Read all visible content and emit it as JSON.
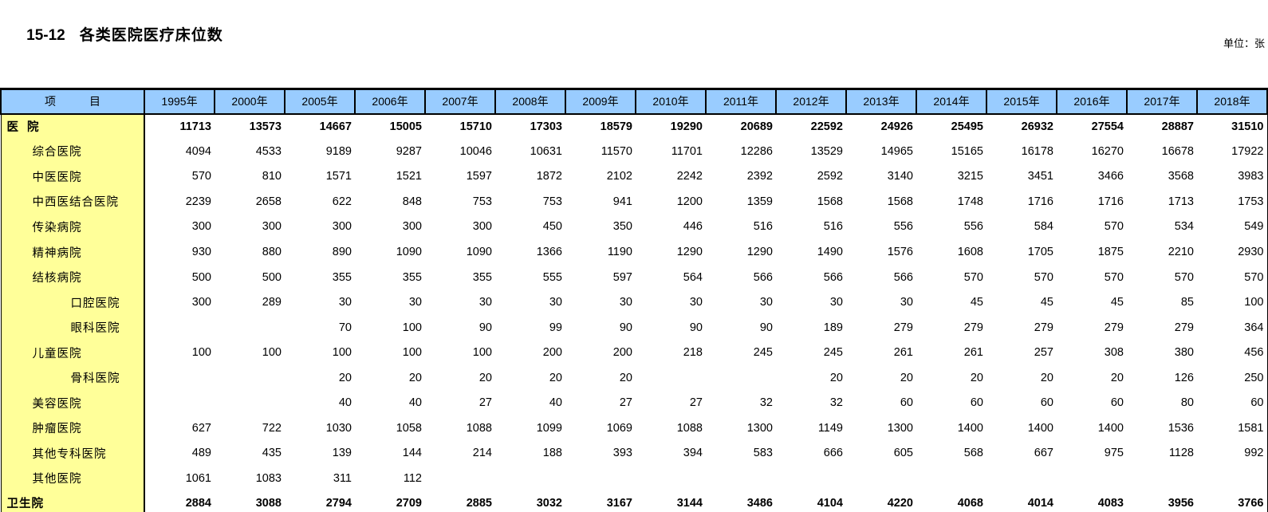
{
  "page": {
    "title_number": "15-12",
    "title_text": "各类医院医疗床位数",
    "unit_note": "单位：张"
  },
  "colors": {
    "header_bg": "#99CCFF",
    "label_col_bg": "#FFFF99",
    "border": "#000000"
  },
  "table": {
    "item_header": "项　　　目",
    "year_columns": [
      "1995年",
      "2000年",
      "2005年",
      "2006年",
      "2007年",
      "2008年",
      "2009年",
      "2010年",
      "2011年",
      "2012年",
      "2013年",
      "2014年",
      "2015年",
      "2016年",
      "2017年",
      "2018年"
    ],
    "rows": [
      {
        "label": "医  院",
        "indent": 0,
        "bold": true,
        "values": [
          "11713",
          "13573",
          "14667",
          "15005",
          "15710",
          "17303",
          "18579",
          "19290",
          "20689",
          "22592",
          "24926",
          "25495",
          "26932",
          "27554",
          "28887",
          "31510"
        ]
      },
      {
        "label": "综合医院",
        "indent": 1,
        "bold": false,
        "values": [
          "4094",
          "4533",
          "9189",
          "9287",
          "10046",
          "10631",
          "11570",
          "11701",
          "12286",
          "13529",
          "14965",
          "15165",
          "16178",
          "16270",
          "16678",
          "17922"
        ]
      },
      {
        "label": "中医医院",
        "indent": 1,
        "bold": false,
        "values": [
          "570",
          "810",
          "1571",
          "1521",
          "1597",
          "1872",
          "2102",
          "2242",
          "2392",
          "2592",
          "3140",
          "3215",
          "3451",
          "3466",
          "3568",
          "3983"
        ]
      },
      {
        "label": "中西医结合医院",
        "indent": 1,
        "bold": false,
        "values": [
          "2239",
          "2658",
          "622",
          "848",
          "753",
          "753",
          "941",
          "1200",
          "1359",
          "1568",
          "1568",
          "1748",
          "1716",
          "1716",
          "1713",
          "1753"
        ]
      },
      {
        "label": "传染病院",
        "indent": 1,
        "bold": false,
        "values": [
          "300",
          "300",
          "300",
          "300",
          "300",
          "450",
          "350",
          "446",
          "516",
          "516",
          "556",
          "556",
          "584",
          "570",
          "534",
          "549"
        ]
      },
      {
        "label": "精神病院",
        "indent": 1,
        "bold": false,
        "values": [
          "930",
          "880",
          "890",
          "1090",
          "1090",
          "1366",
          "1190",
          "1290",
          "1290",
          "1490",
          "1576",
          "1608",
          "1705",
          "1875",
          "2210",
          "2930"
        ]
      },
      {
        "label": "结核病院",
        "indent": 1,
        "bold": false,
        "values": [
          "500",
          "500",
          "355",
          "355",
          "355",
          "555",
          "597",
          "564",
          "566",
          "566",
          "566",
          "570",
          "570",
          "570",
          "570",
          "570"
        ]
      },
      {
        "label": "口腔医院",
        "indent": 2,
        "bold": false,
        "values": [
          "300",
          "289",
          "30",
          "30",
          "30",
          "30",
          "30",
          "30",
          "30",
          "30",
          "30",
          "45",
          "45",
          "45",
          "85",
          "100"
        ]
      },
      {
        "label": "眼科医院",
        "indent": 2,
        "bold": false,
        "values": [
          "",
          "",
          "70",
          "100",
          "90",
          "99",
          "90",
          "90",
          "90",
          "189",
          "279",
          "279",
          "279",
          "279",
          "279",
          "364"
        ]
      },
      {
        "label": "儿童医院",
        "indent": 1,
        "bold": false,
        "values": [
          "100",
          "100",
          "100",
          "100",
          "100",
          "200",
          "200",
          "218",
          "245",
          "245",
          "261",
          "261",
          "257",
          "308",
          "380",
          "456"
        ]
      },
      {
        "label": "骨科医院",
        "indent": 2,
        "bold": false,
        "values": [
          "",
          "",
          "20",
          "20",
          "20",
          "20",
          "20",
          "",
          "",
          "20",
          "20",
          "20",
          "20",
          "20",
          "126",
          "250"
        ]
      },
      {
        "label": "美容医院",
        "indent": 1,
        "bold": false,
        "values": [
          "",
          "",
          "40",
          "40",
          "27",
          "40",
          "27",
          "27",
          "32",
          "32",
          "60",
          "60",
          "60",
          "60",
          "80",
          "60"
        ]
      },
      {
        "label": "肿瘤医院",
        "indent": 1,
        "bold": false,
        "values": [
          "627",
          "722",
          "1030",
          "1058",
          "1088",
          "1099",
          "1069",
          "1088",
          "1300",
          "1149",
          "1300",
          "1400",
          "1400",
          "1400",
          "1536",
          "1581"
        ]
      },
      {
        "label": "其他专科医院",
        "indent": 1,
        "bold": false,
        "values": [
          "489",
          "435",
          "139",
          "144",
          "214",
          "188",
          "393",
          "394",
          "583",
          "666",
          "605",
          "568",
          "667",
          "975",
          "1128",
          "992"
        ]
      },
      {
        "label": "其他医院",
        "indent": 1,
        "bold": false,
        "values": [
          "1061",
          "1083",
          "311",
          "112",
          "",
          "",
          "",
          "",
          "",
          "",
          "",
          "",
          "",
          "",
          "",
          ""
        ]
      },
      {
        "label": "卫生院",
        "indent": 0,
        "bold": true,
        "values": [
          "2884",
          "3088",
          "2794",
          "2709",
          "2885",
          "3032",
          "3167",
          "3144",
          "3486",
          "4104",
          "4220",
          "4068",
          "4014",
          "4083",
          "3956",
          "3766"
        ]
      }
    ]
  }
}
